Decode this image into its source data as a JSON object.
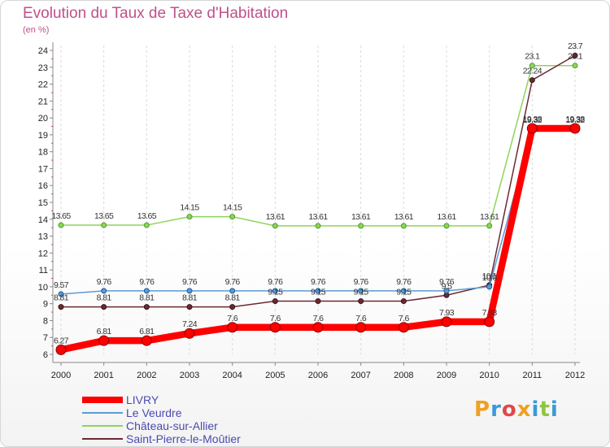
{
  "chart_data": {
    "type": "line",
    "title": "Evolution du Taux de Taxe d'Habitation",
    "subtitle": "(en %)",
    "xlabel": "",
    "ylabel": "(en %)",
    "x": [
      2000,
      2001,
      2002,
      2003,
      2004,
      2005,
      2006,
      2007,
      2008,
      2009,
      2010,
      2011,
      2012
    ],
    "ylim": [
      6,
      24
    ],
    "yticks": [
      6,
      7,
      8,
      9,
      10,
      11,
      12,
      13,
      14,
      15,
      16,
      17,
      18,
      19,
      20,
      21,
      22,
      23,
      24
    ],
    "grid": "dashed vertical lines at each year",
    "legend_position": "bottom-left",
    "series": [
      {
        "name": "LIVRY",
        "color": "#ff0000",
        "values": [
          6.27,
          6.81,
          6.81,
          7.24,
          7.6,
          7.6,
          7.6,
          7.6,
          7.6,
          7.93,
          7.93,
          19.38,
          19.38
        ],
        "labels": [
          "6.27",
          "6.81",
          "6.81",
          "7.24",
          "7.6",
          "7.6",
          "7.6",
          "7.6",
          "7.6",
          "7.93",
          "7.93",
          "19.38",
          "19.38"
        ]
      },
      {
        "name": "Le Veurdre",
        "color": "#5b9bd5",
        "values": [
          9.57,
          9.76,
          9.76,
          9.76,
          9.76,
          9.76,
          9.76,
          9.76,
          9.76,
          9.76,
          10.0,
          19.32,
          19.32
        ],
        "labels": [
          "9.57",
          "9.76",
          "9.76",
          "9.76",
          "9.76",
          "9.76",
          "9.76",
          "9.76",
          "9.76",
          "9.76",
          "10.0",
          "19.32",
          "19.32"
        ]
      },
      {
        "name": "Château-sur-Allier",
        "color": "#8ed45a",
        "values": [
          13.65,
          13.65,
          13.65,
          14.15,
          14.15,
          13.61,
          13.61,
          13.61,
          13.61,
          13.61,
          13.61,
          23.1,
          23.1
        ],
        "labels": [
          "13.65",
          "13.65",
          "13.65",
          "14.15",
          "14.15",
          "13.61",
          "13.61",
          "13.61",
          "13.61",
          "13.61",
          "13.61",
          "23.1",
          "23.1"
        ]
      },
      {
        "name": "Saint-Pierre-le-Moûtier",
        "color": "#6b2a33",
        "values": [
          8.81,
          8.81,
          8.81,
          8.81,
          8.81,
          9.15,
          9.15,
          9.15,
          9.15,
          9.5,
          10.1,
          22.24,
          23.7
        ],
        "labels": [
          "8.81",
          "8.81",
          "8.81",
          "8.81",
          "8.81",
          "9.15",
          "9.15",
          "9.15",
          "9.15",
          "9.5",
          "10.1",
          "22.24",
          "23.7"
        ]
      }
    ]
  },
  "branding": {
    "text": "Proxiti"
  }
}
